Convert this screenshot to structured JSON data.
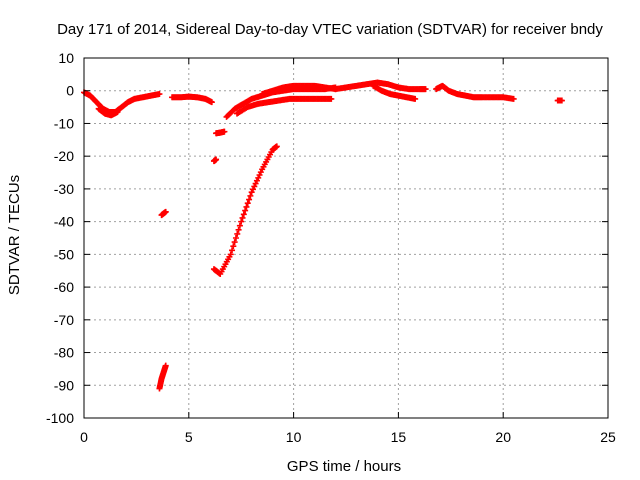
{
  "chart_data": {
    "type": "scatter",
    "title": "Day 171 of 2014, Sidereal Day-to-day VTEC variation (SDTVAR) for receiver bndy",
    "xlabel": "GPS time / hours",
    "ylabel": "SDTVAR / TECUs",
    "xlim": [
      0,
      25
    ],
    "ylim": [
      -100,
      10
    ],
    "xticks": [
      0,
      5,
      10,
      15,
      20,
      25
    ],
    "yticks": [
      10,
      0,
      -10,
      -20,
      -30,
      -40,
      -50,
      -60,
      -70,
      -80,
      -90,
      -100
    ],
    "grid": true,
    "marker": "+",
    "series": [
      {
        "name": "SDTVAR",
        "color": "#ff0000",
        "segments": [
          {
            "x": [
              0,
              0.3,
              0.6,
              0.9,
              1.2,
              1.5,
              1.8,
              2.1,
              2.4,
              2.8,
              3.2,
              3.6
            ],
            "y": [
              -0.5,
              -1.5,
              -3.5,
              -5.5,
              -6.5,
              -6.5,
              -5,
              -3.5,
              -2.5,
              -2,
              -1.5,
              -1
            ]
          },
          {
            "x": [
              0.7,
              1.0,
              1.3,
              1.6
            ],
            "y": [
              -5.5,
              -7,
              -7.5,
              -6.5
            ]
          },
          {
            "x": [
              4.2,
              4.6,
              5.0,
              5.4,
              5.8,
              6.1
            ],
            "y": [
              -2,
              -2,
              -1.8,
              -2,
              -2.5,
              -3.5
            ]
          },
          {
            "x": [
              6.8,
              7.2,
              7.6,
              8.0,
              8.5,
              9.0,
              9.5,
              10.0,
              10.5,
              11.0,
              11.5,
              12.0
            ],
            "y": [
              -8,
              -5.5,
              -4,
              -2.5,
              -1.5,
              -0.5,
              0,
              0.5,
              0.5,
              0.5,
              0.5,
              1
            ]
          },
          {
            "x": [
              7.3,
              7.8,
              8.3,
              8.8,
              9.3,
              9.8,
              10.3,
              10.8,
              11.3,
              11.8
            ],
            "y": [
              -7,
              -5,
              -4,
              -3.5,
              -3,
              -2.5,
              -2.5,
              -2.5,
              -2.5,
              -2.5
            ]
          },
          {
            "x": [
              8.5,
              9.0,
              9.5,
              10.0,
              10.5,
              11.0,
              11.5,
              12.0
            ],
            "y": [
              -1,
              0,
              1,
              1.5,
              1.5,
              1.5,
              1,
              0.5
            ]
          },
          {
            "x": [
              12.0,
              12.5,
              13.0,
              13.5,
              14.0,
              14.5,
              15.0,
              15.5,
              16.0,
              16.3
            ],
            "y": [
              0.5,
              1,
              1.5,
              2,
              2.5,
              2,
              1,
              0.5,
              0.5,
              0.5
            ]
          },
          {
            "x": [
              13.8,
              14.2,
              14.6,
              15.0,
              15.4,
              15.8
            ],
            "y": [
              1.5,
              0,
              -1,
              -1.5,
              -2,
              -2.5
            ]
          },
          {
            "x": [
              16.8,
              17.1,
              17.4,
              17.8,
              18.2,
              18.6,
              19.0,
              19.5,
              20.0,
              20.5
            ],
            "y": [
              0.5,
              1.5,
              0,
              -1,
              -1.5,
              -2,
              -2,
              -2,
              -2,
              -2.5
            ]
          },
          {
            "x": [
              22.6,
              22.8
            ],
            "y": [
              -3,
              -3
            ]
          },
          {
            "x": [
              6.3,
              6.5,
              6.7
            ],
            "y": [
              -13,
              -12.8,
              -12.5
            ]
          },
          {
            "x": [
              6.2,
              6.3
            ],
            "y": [
              -21.5,
              -21
            ]
          },
          {
            "x": [
              6.2,
              6.5,
              7.0,
              7.5,
              8.0,
              8.5,
              9.0,
              9.2
            ],
            "y": [
              -54.5,
              -56,
              -50,
              -40,
              -31,
              -24,
              -18,
              -17
            ]
          },
          {
            "x": [
              3.7,
              3.9
            ],
            "y": [
              -38,
              -37
            ]
          },
          {
            "x": [
              3.6,
              3.7,
              3.8,
              3.9
            ],
            "y": [
              -91,
              -88,
              -86,
              -84
            ]
          }
        ]
      }
    ]
  }
}
